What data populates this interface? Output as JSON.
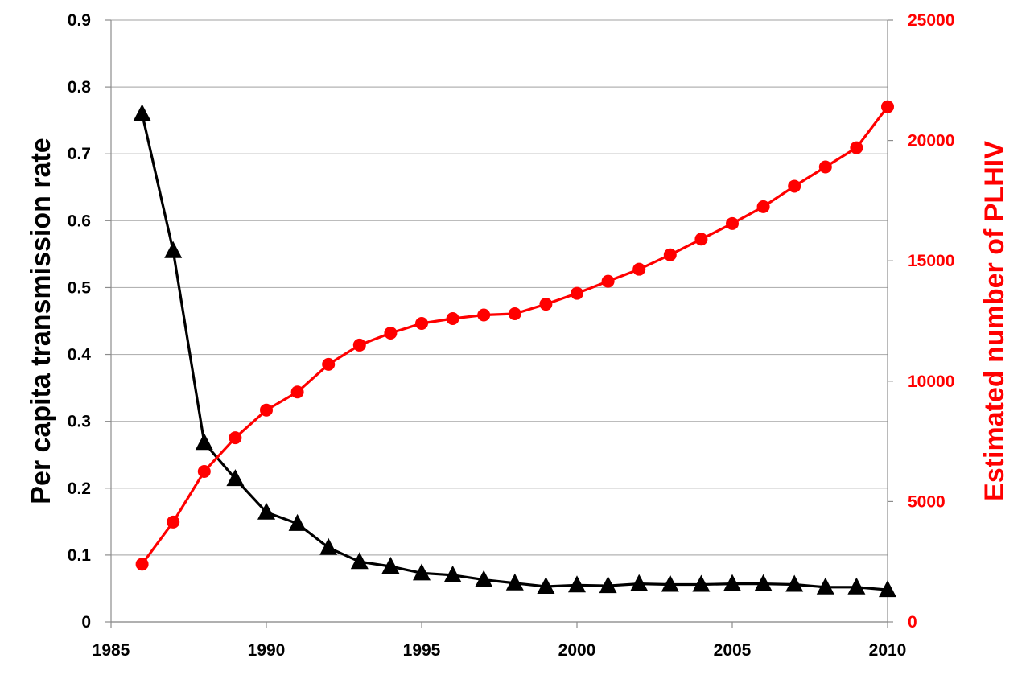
{
  "chart_data": {
    "type": "line",
    "title": "",
    "xlabel": "",
    "ylabel": "Per capita transmission rate",
    "y2label": "Estimated number of PLHIV",
    "xlim": [
      1985,
      2010
    ],
    "ylim": [
      0,
      0.9
    ],
    "y2lim": [
      0,
      25000
    ],
    "grid": true,
    "legend": "none",
    "x_ticks": [
      "1985",
      "1990",
      "1995",
      "2000",
      "2005",
      "2010"
    ],
    "y_ticks": [
      "0",
      "0.1",
      "0.2",
      "0.3",
      "0.4",
      "0.5",
      "0.6",
      "0.7",
      "0.8",
      "0.9"
    ],
    "y2_ticks": [
      "0",
      "5000",
      "10000",
      "15000",
      "20000",
      "25000"
    ],
    "x": [
      1986,
      1987,
      1988,
      1989,
      1990,
      1991,
      1992,
      1993,
      1994,
      1995,
      1996,
      1997,
      1998,
      1999,
      2000,
      2001,
      2002,
      2003,
      2004,
      2005,
      2006,
      2007,
      2008,
      2009,
      2010
    ],
    "series": [
      {
        "axis": "left",
        "color": "#000000",
        "marker": "triangle",
        "values": [
          0.76,
          0.555,
          0.268,
          0.214,
          0.164,
          0.147,
          0.111,
          0.09,
          0.083,
          0.073,
          0.07,
          0.063,
          0.058,
          0.053,
          0.055,
          0.054,
          0.057,
          0.056,
          0.056,
          0.057,
          0.057,
          0.056,
          0.052,
          0.052,
          0.048
        ]
      },
      {
        "axis": "right",
        "color": "#ff0000",
        "marker": "circle",
        "values": [
          2400,
          4150,
          6250,
          7650,
          8800,
          9550,
          10700,
          11500,
          12000,
          12400,
          12600,
          12750,
          12800,
          13200,
          13650,
          14150,
          14650,
          15250,
          15900,
          16550,
          17250,
          18100,
          18900,
          19700,
          21400
        ]
      }
    ]
  }
}
